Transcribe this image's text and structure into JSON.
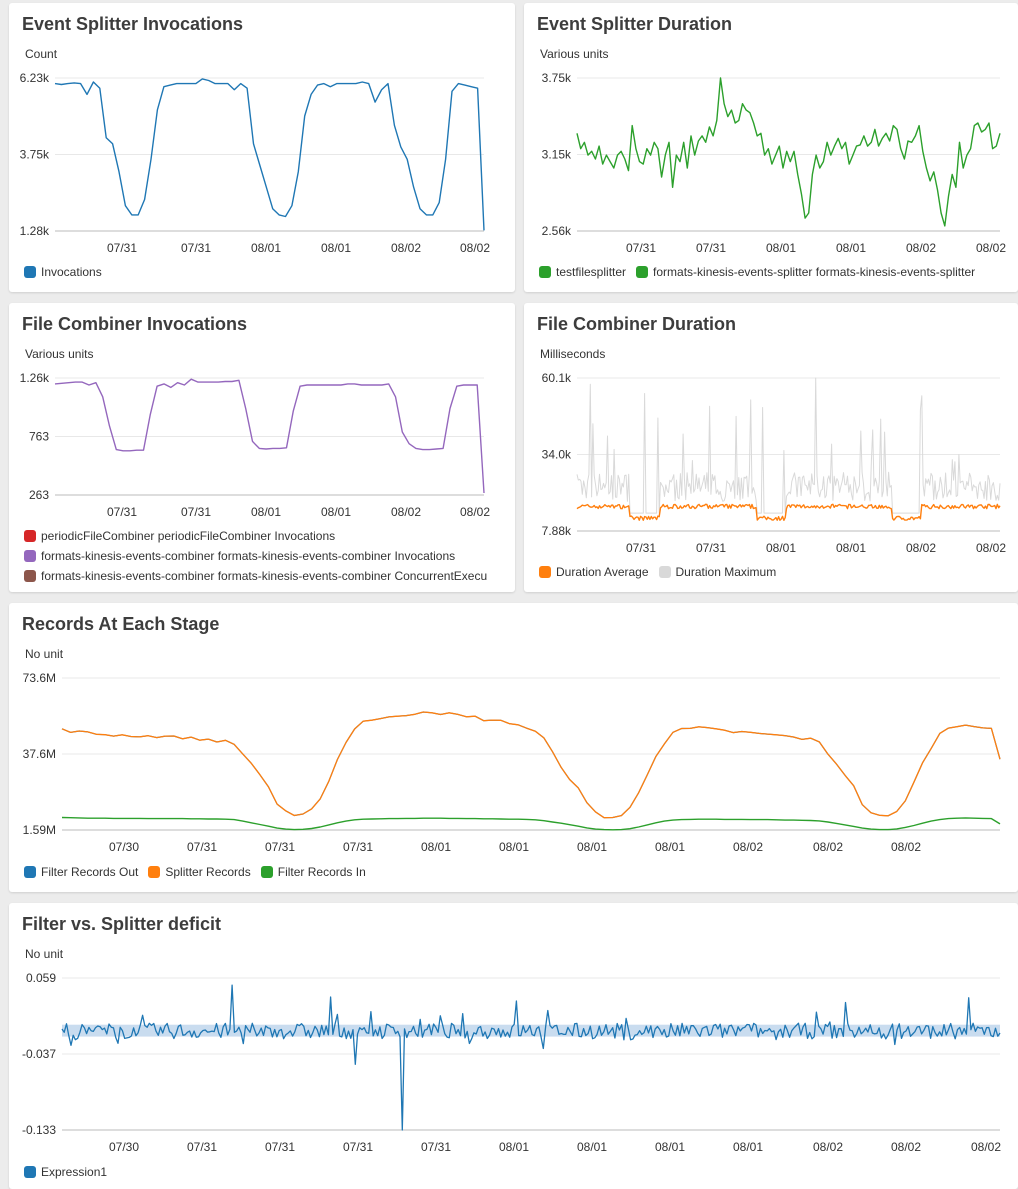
{
  "panels": {
    "p1": {
      "title": "Event Splitter Invocations",
      "unit": "Count"
    },
    "p2": {
      "title": "Event Splitter Duration",
      "unit": "Various units"
    },
    "p3": {
      "title": "File Combiner Invocations",
      "unit": "Various units"
    },
    "p4": {
      "title": "File Combiner Duration",
      "unit": "Milliseconds"
    },
    "p5": {
      "title": "Records At Each Stage",
      "unit": "No unit"
    },
    "p6": {
      "title": "Filter vs. Splitter deficit",
      "unit": "No unit"
    }
  },
  "colors": {
    "blue": "#1f77b4",
    "green": "#2ca02c",
    "purple": "#9467bd",
    "red": "#d62728",
    "brown": "#8c564b",
    "orange": "#ff7f0e",
    "gray": "#d9d9d9",
    "grid": "#e8e8e8"
  },
  "chart_data": [
    {
      "id": "p1",
      "type": "line",
      "ylim": [
        1280,
        6230
      ],
      "yticks": [
        "6.23k",
        "3.75k",
        "1.28k"
      ],
      "xticks": [
        "07/31",
        "07/31",
        "08/01",
        "08/01",
        "08/02",
        "08/02"
      ],
      "series": [
        {
          "name": "Invocations",
          "color": "#1f77b4",
          "values": [
            6050,
            6020,
            6050,
            6070,
            6050,
            5700,
            6100,
            5900,
            4300,
            4100,
            3200,
            2100,
            1800,
            1800,
            2300,
            3600,
            5200,
            5950,
            6000,
            6050,
            6050,
            6050,
            6050,
            6200,
            6150,
            6050,
            6050,
            6050,
            5850,
            6050,
            5900,
            4100,
            3400,
            2700,
            2000,
            1800,
            1750,
            2100,
            3200,
            5000,
            5700,
            6000,
            6050,
            5950,
            6050,
            6050,
            6050,
            6050,
            6100,
            6050,
            5450,
            5850,
            6050,
            4700,
            4000,
            3600,
            2700,
            2000,
            1800,
            1800,
            2200,
            3600,
            5800,
            6050,
            6000,
            5950,
            5900,
            1300
          ]
        }
      ]
    },
    {
      "id": "p2",
      "type": "line",
      "ylim": [
        2560,
        3750
      ],
      "yticks": [
        "3.75k",
        "3.15k",
        "2.56k"
      ],
      "xticks": [
        "07/31",
        "07/31",
        "08/01",
        "08/01",
        "08/02",
        "08/02"
      ],
      "series": [
        {
          "name": "testfilesplitter",
          "color": "#2ca02c",
          "values": []
        },
        {
          "name": "formats-kinesis-events-splitter formats-kinesis-events-splitter",
          "color": "#2ca02c",
          "values": [
            3320,
            3200,
            3250,
            3150,
            3180,
            3120,
            3220,
            3080,
            3150,
            3100,
            3050,
            3150,
            3180,
            3120,
            3030,
            3380,
            3200,
            3100,
            3080,
            3200,
            3150,
            3250,
            3200,
            2980,
            3150,
            3250,
            2900,
            3150,
            3100,
            3250,
            3050,
            3300,
            3150,
            3260,
            3300,
            3250,
            3370,
            3300,
            3420,
            3750,
            3550,
            3450,
            3500,
            3400,
            3420,
            3550,
            3500,
            3480,
            3400,
            3300,
            3320,
            3150,
            3200,
            3080,
            3150,
            3220,
            3050,
            3180,
            3100,
            3180,
            3000,
            2850,
            2660,
            2700,
            3000,
            3150,
            3050,
            3100,
            3250,
            3150,
            3220,
            3280,
            3200,
            3250,
            3080,
            3150,
            3220,
            3230,
            3300,
            3220,
            3250,
            3350,
            3220,
            3280,
            3320,
            3260,
            3380,
            3350,
            3200,
            3120,
            3260,
            3250,
            3300,
            3380,
            3180,
            3050,
            2950,
            3020,
            2880,
            2700,
            2600,
            2830,
            3000,
            2900,
            3250,
            3050,
            3150,
            3200,
            3380,
            3400,
            3330,
            3350,
            3400,
            3200,
            3220,
            3320
          ]
        }
      ]
    },
    {
      "id": "p3",
      "type": "line",
      "ylim": [
        263,
        1260
      ],
      "yticks": [
        "1.26k",
        "763",
        "263"
      ],
      "xticks": [
        "07/31",
        "07/31",
        "08/01",
        "08/01",
        "08/02",
        "08/02"
      ],
      "series": [
        {
          "name": "periodicFileCombiner periodicFileCombiner Invocations",
          "color": "#d62728",
          "values": []
        },
        {
          "name": "formats-kinesis-events-combiner formats-kinesis-events-combiner Invocations",
          "color": "#9467bd",
          "values": [
            1210,
            1215,
            1220,
            1225,
            1225,
            1200,
            1220,
            1100,
            850,
            650,
            640,
            640,
            645,
            645,
            950,
            1190,
            1210,
            1180,
            1220,
            1200,
            1250,
            1225,
            1225,
            1225,
            1225,
            1230,
            1230,
            1240,
            1000,
            720,
            660,
            655,
            660,
            660,
            665,
            980,
            1190,
            1200,
            1200,
            1200,
            1200,
            1200,
            1200,
            1210,
            1210,
            1200,
            1200,
            1200,
            1200,
            1210,
            1100,
            800,
            700,
            660,
            650,
            650,
            655,
            660,
            1000,
            1190,
            1200,
            1200,
            1200,
            280
          ]
        },
        {
          "name": "formats-kinesis-events-combiner formats-kinesis-events-combiner ConcurrentExecu",
          "color": "#8c564b",
          "values": []
        }
      ]
    },
    {
      "id": "p4",
      "type": "line",
      "ylim": [
        7880,
        60100
      ],
      "yticks": [
        "60.1k",
        "34.0k",
        "7.88k"
      ],
      "xticks": [
        "07/31",
        "07/31",
        "08/01",
        "08/01",
        "08/02",
        "08/02"
      ],
      "series": [
        {
          "name": "Duration Average",
          "color": "#ff7f0e",
          "values": []
        },
        {
          "name": "Duration Maximum",
          "color": "#d9d9d9",
          "values": []
        }
      ]
    },
    {
      "id": "p5",
      "type": "line",
      "ylim": [
        1590,
        73600
      ],
      "yticks": [
        "73.6M",
        "37.6M",
        "1.59M"
      ],
      "xticks": [
        "07/30",
        "07/31",
        "07/31",
        "07/31",
        "08/01",
        "08/01",
        "08/01",
        "08/01",
        "08/02",
        "08/02",
        "08/02"
      ],
      "series": [
        {
          "name": "Filter Records Out",
          "color": "#1f77b4",
          "values": []
        },
        {
          "name": "Splitter Records",
          "color": "#ff7f0e",
          "values": [
            49000,
            48500,
            48000,
            47500,
            47000,
            47000,
            46500,
            46500,
            46500,
            46000,
            46000,
            46000,
            46000,
            45500,
            45500,
            45000,
            44500,
            44500,
            44000,
            43500,
            42000,
            38000,
            33000,
            28000,
            22000,
            14000,
            10000,
            8000,
            8500,
            11000,
            17000,
            25000,
            35000,
            43000,
            50000,
            53000,
            54000,
            54500,
            55000,
            55000,
            56000,
            57000,
            58000,
            57500,
            57000,
            56500,
            56000,
            55000,
            55000,
            54000,
            53500,
            53000,
            52500,
            51500,
            50000,
            48000,
            45000,
            38000,
            32000,
            26000,
            21000,
            14000,
            10000,
            8000,
            7500,
            8500,
            12000,
            19000,
            28000,
            37000,
            43000,
            48000,
            49000,
            49500,
            50000,
            49500,
            49000,
            48500,
            48000,
            48000,
            47500,
            47000,
            47000,
            46500,
            46000,
            45500,
            45000,
            44500,
            43000,
            38000,
            33000,
            28000,
            22000,
            14000,
            10000,
            8000,
            8000,
            10000,
            16000,
            24000,
            33000,
            41000,
            47000,
            50000,
            51000,
            52000,
            51000,
            50000,
            49000,
            35000
          ]
        },
        {
          "name": "Filter Records In",
          "color": "#2ca02c",
          "values": [
            7500,
            7400,
            7300,
            7200,
            7200,
            7200,
            7100,
            7100,
            7100,
            7100,
            7000,
            7000,
            7000,
            7000,
            7000,
            6900,
            6900,
            6800,
            6800,
            6700,
            6500,
            5800,
            5000,
            4200,
            3400,
            2500,
            2000,
            1800,
            1900,
            2300,
            3000,
            4000,
            5000,
            5800,
            6400,
            6700,
            6800,
            6900,
            7000,
            7000,
            7100,
            7100,
            7200,
            7200,
            7200,
            7100,
            7100,
            7000,
            7000,
            6900,
            6900,
            6800,
            6700,
            6700,
            6600,
            6400,
            6000,
            5400,
            4800,
            4100,
            3400,
            2600,
            2000,
            1800,
            1700,
            1800,
            2200,
            3000,
            4000,
            5000,
            5800,
            6300,
            6500,
            6600,
            6700,
            6700,
            6700,
            6600,
            6600,
            6600,
            6500,
            6500,
            6500,
            6400,
            6300,
            6300,
            6200,
            6100,
            5900,
            5400,
            4700,
            4000,
            3300,
            2500,
            2000,
            1800,
            1800,
            2100,
            2800,
            3700,
            4800,
            5800,
            6500,
            7000,
            7200,
            7300,
            7200,
            7100,
            7000,
            4500
          ]
        }
      ]
    },
    {
      "id": "p6",
      "type": "line",
      "ylim": [
        -0.133,
        0.059
      ],
      "yticks": [
        "0.059",
        "-0.037",
        "-0.133"
      ],
      "xticks": [
        "07/30",
        "07/31",
        "07/31",
        "07/31",
        "07/31",
        "08/01",
        "08/01",
        "08/01",
        "08/01",
        "08/02",
        "08/02",
        "08/02"
      ],
      "series": [
        {
          "name": "Expression1",
          "color": "#1f77b4",
          "values": []
        }
      ]
    }
  ]
}
